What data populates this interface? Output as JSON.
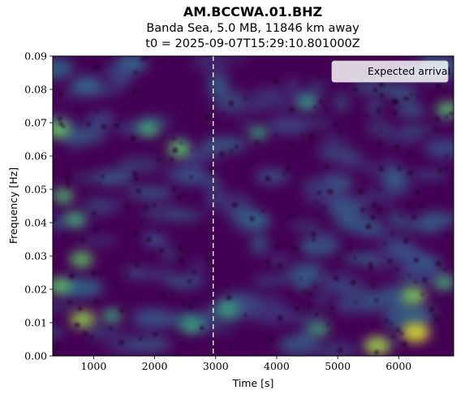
{
  "chart_data": {
    "type": "heatmap",
    "title": "AM.BCCWA.01.BHZ",
    "subtitle": "Banda Sea, 5.0 MB, 11846 km away",
    "subtitle2": "t0 = 2025-09-07T15:29:10.801000Z",
    "xlabel": "Time [s]",
    "ylabel": "Frequency [Hz]",
    "xlim": [
      330,
      6900
    ],
    "ylim": [
      0,
      0.09
    ],
    "xticks": [
      "1000",
      "2000",
      "3000",
      "4000",
      "5000",
      "6000"
    ],
    "yticks": [
      "0.00",
      "0.01",
      "0.02",
      "0.03",
      "0.04",
      "0.05",
      "0.06",
      "0.07",
      "0.08",
      "0.09"
    ],
    "colormap": "viridis",
    "expected_arrival_x": 2960,
    "legend": {
      "placement": "top-right",
      "entries": [
        {
          "label": "Expected arrival",
          "style": "dashed",
          "color": "#ffffff"
        }
      ]
    },
    "hotspots": [
      {
        "x": 420,
        "y": 0.068,
        "intensity": 0.7
      },
      {
        "x": 500,
        "y": 0.048,
        "intensity": 0.55
      },
      {
        "x": 450,
        "y": 0.021,
        "intensity": 0.65
      },
      {
        "x": 820,
        "y": 0.011,
        "intensity": 0.8
      },
      {
        "x": 800,
        "y": 0.029,
        "intensity": 0.65
      },
      {
        "x": 700,
        "y": 0.041,
        "intensity": 0.5
      },
      {
        "x": 2400,
        "y": 0.062,
        "intensity": 0.65
      },
      {
        "x": 1900,
        "y": 0.068,
        "intensity": 0.5
      },
      {
        "x": 3200,
        "y": 0.014,
        "intensity": 0.45
      },
      {
        "x": 5650,
        "y": 0.003,
        "intensity": 0.85
      },
      {
        "x": 6280,
        "y": 0.007,
        "intensity": 1.0
      },
      {
        "x": 6250,
        "y": 0.018,
        "intensity": 0.75
      },
      {
        "x": 6800,
        "y": 0.074,
        "intensity": 0.6
      },
      {
        "x": 6750,
        "y": 0.022,
        "intensity": 0.5
      },
      {
        "x": 4500,
        "y": 0.076,
        "intensity": 0.4
      },
      {
        "x": 4700,
        "y": 0.008,
        "intensity": 0.45
      },
      {
        "x": 3700,
        "y": 0.067,
        "intensity": 0.4
      },
      {
        "x": 1300,
        "y": 0.012,
        "intensity": 0.45
      },
      {
        "x": 2600,
        "y": 0.009,
        "intensity": 0.45
      }
    ]
  },
  "colors": {
    "background": "#440154",
    "arrival_line": "#ffffff",
    "legend_bg": "#ffffff"
  }
}
